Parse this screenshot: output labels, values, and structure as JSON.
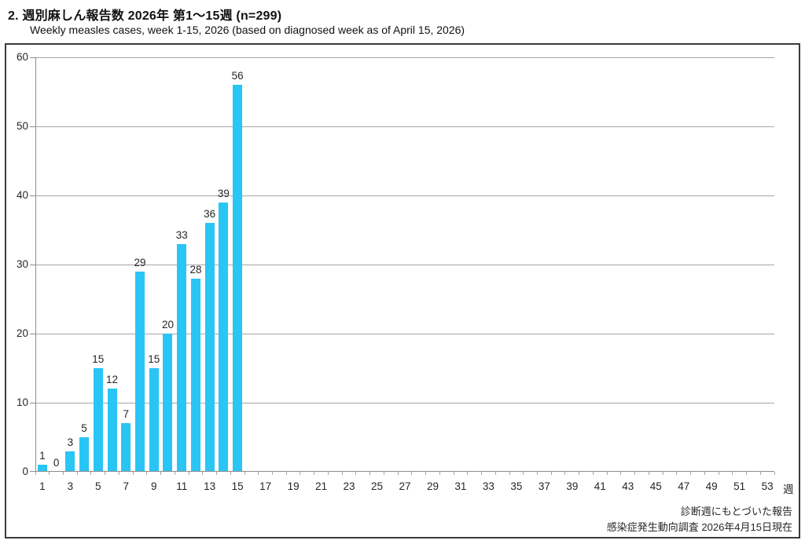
{
  "header": {
    "title": "2. 週別麻しん報告数  2026年 第1～15週 (n=299)",
    "subtitle": "Weekly measles cases, week 1-15, 2026 (based on diagnosed week as of April 15, 2026)"
  },
  "footer": {
    "line1": "診断週にもとづいた報告",
    "line2": "感染症発生動向調査 2026年4月15日現在"
  },
  "chart_data": {
    "type": "bar",
    "title": "週別麻しん報告数 2026年 第1～15週 (n=299)",
    "n_total": 299,
    "categories": [
      1,
      2,
      3,
      4,
      5,
      6,
      7,
      8,
      9,
      10,
      11,
      12,
      13,
      14,
      15
    ],
    "values": [
      1,
      0,
      3,
      5,
      15,
      12,
      7,
      29,
      15,
      20,
      33,
      28,
      36,
      39,
      56
    ],
    "data_labels_shown": true,
    "x_axis": {
      "weeks_total": 53,
      "tick_labels": [
        1,
        3,
        5,
        7,
        9,
        11,
        13,
        15,
        17,
        19,
        21,
        23,
        25,
        27,
        29,
        31,
        33,
        35,
        37,
        39,
        41,
        43,
        45,
        47,
        49,
        51,
        53
      ],
      "unit_label": "週"
    },
    "y_axis": {
      "min": 0,
      "max": 60,
      "ticks": [
        0,
        10,
        20,
        30,
        40,
        50,
        60
      ]
    },
    "grid": "horizontal",
    "legend": "none",
    "colors": {
      "bar": "#29C5F5",
      "gridline": "#A6A6A6",
      "axis": "#8C8C8C",
      "frame": "#3B3B3B",
      "text": "#262626"
    }
  }
}
